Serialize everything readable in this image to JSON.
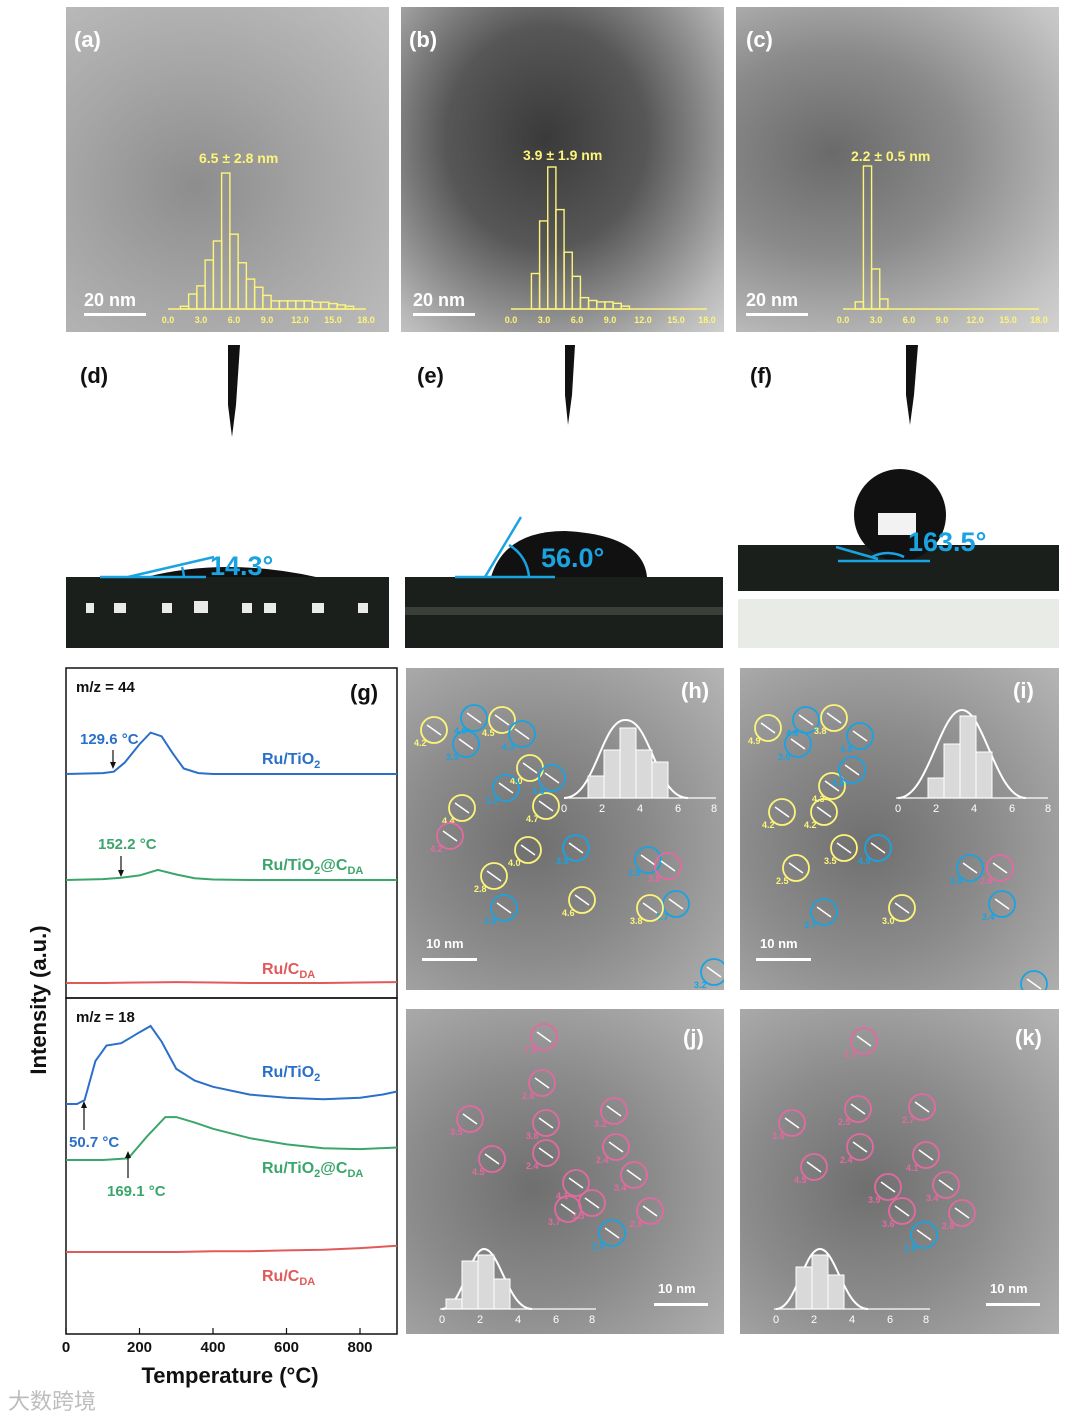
{
  "panels": {
    "a": {
      "label": "(a)",
      "size_text": "6.5 ± 2.8 nm",
      "scale": "20 nm"
    },
    "b": {
      "label": "(b)",
      "size_text": "3.9 ± 1.9 nm",
      "scale": "20 nm"
    },
    "c": {
      "label": "(c)",
      "size_text": "2.2 ± 0.5 nm",
      "scale": "20 nm"
    },
    "d": {
      "label": "(d)",
      "angle": "14.3°"
    },
    "e": {
      "label": "(e)",
      "angle": "56.0°"
    },
    "f": {
      "label": "(f)",
      "angle": "163.5°"
    },
    "g": {
      "label": "(g)"
    },
    "h": {
      "label": "(h)",
      "scale": "10 nm"
    },
    "i": {
      "label": "(i)",
      "scale": "10 nm"
    },
    "j": {
      "label": "(j)",
      "scale": "10 nm"
    },
    "k": {
      "label": "(k)",
      "scale": "10 nm"
    }
  },
  "hist_ticks": [
    "0.0",
    "3.0",
    "6.0",
    "9.0",
    "12.0",
    "15.0",
    "18.0"
  ],
  "inset_ticks": [
    "0",
    "2",
    "4",
    "6",
    "8"
  ],
  "colors": {
    "yellow": "#fdf57a",
    "blue": "#1aa3e0",
    "tpd_blue": "#2a6fc9",
    "tpd_green": "#3aa66b",
    "tpd_red": "#e05a5a",
    "pink": "#e36aa0"
  },
  "chart_data": [
    {
      "type": "bar",
      "panel": "a",
      "title": "6.5 ± 2.8 nm",
      "xlim": [
        0,
        18
      ],
      "bins_x": [
        0.75,
        1.5,
        2.25,
        3.0,
        3.75,
        4.5,
        5.25,
        6.0,
        6.75,
        7.5,
        8.25,
        9.0,
        9.75,
        10.5,
        11.25,
        12.0,
        12.75,
        13.5,
        14.25,
        15.0,
        15.75,
        16.5
      ],
      "values": [
        0,
        2,
        11,
        17,
        36,
        50,
        100,
        55,
        34,
        22,
        16,
        10,
        6,
        6,
        6,
        6,
        6,
        5,
        5,
        4,
        3,
        2
      ]
    },
    {
      "type": "bar",
      "panel": "b",
      "title": "3.9 ± 1.9 nm",
      "xlim": [
        0,
        18
      ],
      "bins_x": [
        0.75,
        1.5,
        2.25,
        3.0,
        3.75,
        4.5,
        5.25,
        6.0,
        6.75,
        7.5,
        8.25,
        9.0,
        9.75,
        10.5,
        11.25,
        12.0,
        12.75,
        13.5,
        14.25,
        15.0,
        15.75,
        16.5
      ],
      "values": [
        0,
        0,
        25,
        62,
        100,
        70,
        40,
        23,
        8,
        6,
        5,
        5,
        4,
        2,
        0,
        0,
        0,
        0,
        0,
        0,
        0,
        0
      ]
    },
    {
      "type": "bar",
      "panel": "c",
      "title": "2.2 ± 0.5 nm",
      "xlim": [
        0,
        18
      ],
      "bins_x": [
        0.75,
        1.5,
        2.25,
        3.0,
        3.75
      ],
      "values": [
        0,
        5,
        100,
        28,
        7
      ]
    },
    {
      "type": "line",
      "panel": "g",
      "title": "m/z = 44",
      "xlabel": "Temperature (°C)",
      "ylabel": "Intensity (a.u.)",
      "xlim": [
        0,
        900
      ],
      "grid": false,
      "series": [
        {
          "name": "Ru/TiO2",
          "annotation": "129.6 °C",
          "x": [
            0,
            100,
            130,
            160,
            200,
            230,
            260,
            290,
            320,
            360,
            400,
            500,
            600,
            700,
            800,
            900
          ],
          "y": [
            0.0,
            0.02,
            0.05,
            0.25,
            0.65,
            0.9,
            0.82,
            0.45,
            0.12,
            0.02,
            0.0,
            0.0,
            0.0,
            0.0,
            0.0,
            0.0
          ]
        },
        {
          "name": "Ru/TiO2@CDA",
          "annotation": "152.2 °C",
          "x": [
            0,
            100,
            150,
            200,
            250,
            300,
            350,
            400,
            500,
            600,
            700,
            800,
            900
          ],
          "y": [
            0.0,
            0.02,
            0.05,
            0.1,
            0.22,
            0.12,
            0.04,
            0.01,
            0.0,
            0.0,
            0.0,
            0.0,
            0.0
          ]
        },
        {
          "name": "Ru/CDA",
          "x": [
            0,
            100,
            200,
            300,
            400,
            500,
            600,
            700,
            800,
            900
          ],
          "y": [
            0.0,
            0.0,
            0.01,
            0.02,
            0.01,
            0.0,
            0.0,
            0.0,
            0.01,
            0.02
          ]
        }
      ]
    },
    {
      "type": "line",
      "panel": "g",
      "title": "m/z = 18",
      "xlabel": "Temperature (°C)",
      "ylabel": "Intensity (a.u.)",
      "xlim": [
        0,
        900
      ],
      "xticks": [
        0,
        200,
        400,
        600,
        800
      ],
      "series": [
        {
          "name": "Ru/TiO2",
          "annotation": "50.7 °C",
          "x": [
            0,
            30,
            50.7,
            80,
            110,
            150,
            200,
            230,
            260,
            300,
            350,
            400,
            500,
            600,
            700,
            800,
            860,
            900
          ],
          "y": [
            0.0,
            0.0,
            0.05,
            0.55,
            0.75,
            0.78,
            0.92,
            1.0,
            0.8,
            0.45,
            0.3,
            0.22,
            0.12,
            0.08,
            0.06,
            0.08,
            0.12,
            0.16
          ]
        },
        {
          "name": "Ru/TiO2@CDA",
          "annotation": "169.1 °C",
          "x": [
            0,
            100,
            169.1,
            220,
            270,
            300,
            350,
            400,
            500,
            600,
            700,
            800,
            900
          ],
          "y": [
            0.0,
            0.0,
            0.02,
            0.3,
            0.55,
            0.55,
            0.48,
            0.4,
            0.28,
            0.2,
            0.15,
            0.14,
            0.16
          ]
        },
        {
          "name": "Ru/CDA",
          "x": [
            0,
            100,
            200,
            300,
            400,
            500,
            600,
            700,
            800,
            900
          ],
          "y": [
            0.0,
            0.0,
            0.0,
            0.0,
            0.01,
            0.01,
            0.02,
            0.03,
            0.05,
            0.08
          ]
        }
      ]
    }
  ],
  "tpd": {
    "mz44": "m/z = 44",
    "mz18": "m/z = 18",
    "ylabel": "Intensity (a.u.)",
    "xlabel": "Temperature (°C)",
    "xticks": [
      "0",
      "200",
      "400",
      "600",
      "800"
    ],
    "labels": {
      "ru_tio2_44": "Ru/TiO",
      "ru_tio2_cda_44": "Ru/TiO",
      "ru_cda_44": "Ru/C",
      "ru_tio2_18": "Ru/TiO",
      "ru_tio2_cda_18": "Ru/TiO",
      "ru_cda_18": "Ru/C",
      "sub2": "2",
      "subDA": "DA",
      "atC": "@C"
    },
    "annotations": {
      "a1": "129.6 °C",
      "a2": "152.2 °C",
      "a3": "50.7 °C",
      "a4": "169.1 °C"
    }
  },
  "particles": {
    "h": [
      "4.2",
      "4.9",
      "4.5",
      "3.5",
      "4.3",
      "4.0",
      "3.2",
      "4.4",
      "4.2",
      "4.7",
      "2.8",
      "4.0",
      "3.8",
      "2.8",
      "3.6",
      "4.6",
      "3.8",
      "3.7",
      "3.8",
      "3.2",
      "3.6"
    ],
    "i": [
      "4.9",
      "4.6",
      "3.8",
      "3.0",
      "4.3",
      "4.8",
      "4.5",
      "4.2",
      "4.2",
      "3.5",
      "2.5",
      "4.9",
      "3.8",
      "3.7",
      "3.0",
      "2.6",
      "3.4",
      "3.7"
    ],
    "j": [
      "7.9",
      "2.6",
      "3.5",
      "3.2",
      "4.5",
      "3.8",
      "2.4",
      "4.1",
      "3.3",
      "2.4",
      "3.7",
      "2.0",
      "2.8",
      "3.4"
    ],
    "k": [
      "2.7",
      "2.5",
      "3.6",
      "2.7",
      "4.5",
      "2.4",
      "4.1",
      "3.9",
      "3.6",
      "3.4",
      "2.8",
      "2.8"
    ]
  },
  "watermark": "大数跨境"
}
